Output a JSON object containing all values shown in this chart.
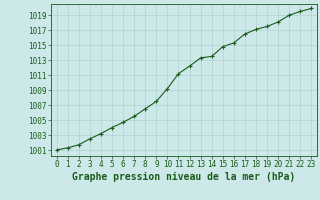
{
  "x": [
    0,
    1,
    2,
    3,
    4,
    5,
    6,
    7,
    8,
    9,
    10,
    11,
    12,
    13,
    14,
    15,
    16,
    17,
    18,
    19,
    20,
    21,
    22,
    23
  ],
  "y": [
    1001.0,
    1001.3,
    1001.7,
    1002.5,
    1003.2,
    1004.0,
    1004.7,
    1005.5,
    1006.5,
    1007.5,
    1009.2,
    1011.2,
    1012.2,
    1013.3,
    1013.5,
    1014.8,
    1015.3,
    1016.5,
    1017.1,
    1017.5,
    1018.1,
    1019.0,
    1019.5,
    1019.9
  ],
  "line_color": "#1a5c1a",
  "marker": "+",
  "marker_size": 3,
  "bg_color": "#cce8e8",
  "grid_color": "#aacccc",
  "axis_color": "#1a5c1a",
  "xlabel": "Graphe pression niveau de la mer (hPa)",
  "xlabel_fontsize": 7,
  "ylabel_ticks": [
    1001,
    1003,
    1005,
    1007,
    1009,
    1011,
    1013,
    1015,
    1017,
    1019
  ],
  "ylim": [
    1000.2,
    1020.5
  ],
  "xlim": [
    -0.5,
    23.5
  ],
  "xtick_labels": [
    "0",
    "1",
    "2",
    "3",
    "4",
    "5",
    "6",
    "7",
    "8",
    "9",
    "10",
    "11",
    "12",
    "13",
    "14",
    "15",
    "16",
    "17",
    "18",
    "19",
    "20",
    "21",
    "22",
    "23"
  ],
  "tick_fontsize": 5.5,
  "lw": 0.8
}
